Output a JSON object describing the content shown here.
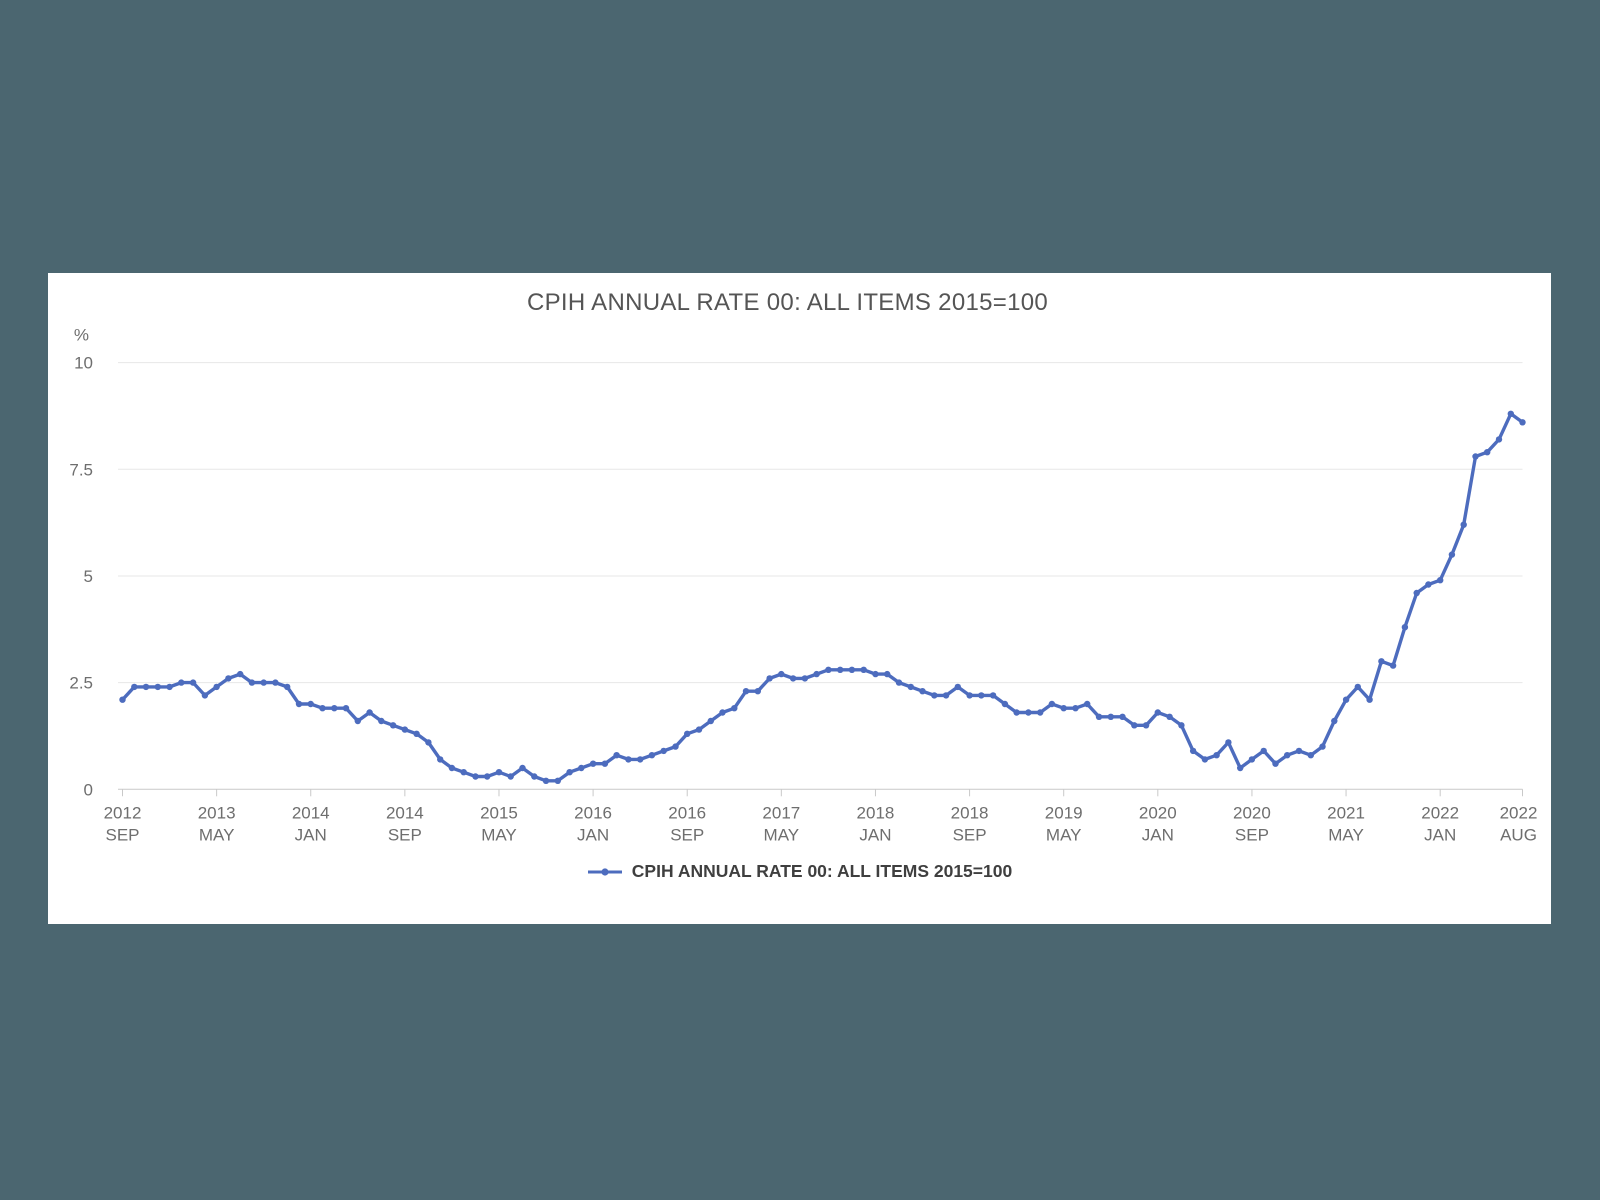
{
  "colors": {
    "page_background": "#4b6670",
    "card_background": "#ffffff",
    "series_line": "#4d6cbe",
    "title_text": "#555555",
    "axis_text": "#6e6e6e",
    "gridline": "#e7e7e7",
    "axis_line": "#c9c9c9",
    "legend_text": "#3f3f3f"
  },
  "chart_data": {
    "type": "line",
    "title": "CPIH ANNUAL RATE 00: ALL ITEMS 2015=100",
    "unit_label": "%",
    "ylim": [
      0,
      10
    ],
    "y_ticks": [
      {
        "value": 0,
        "label": "0"
      },
      {
        "value": 2.5,
        "label": "2.5"
      },
      {
        "value": 5,
        "label": "5"
      },
      {
        "value": 7.5,
        "label": "7.5"
      },
      {
        "value": 10,
        "label": "10"
      }
    ],
    "grid": "horizontal-only",
    "legend_position": "bottom-center",
    "x_ticks": [
      {
        "i": 0,
        "year": "2012",
        "month": "SEP"
      },
      {
        "i": 8,
        "year": "2013",
        "month": "MAY"
      },
      {
        "i": 16,
        "year": "2014",
        "month": "JAN"
      },
      {
        "i": 24,
        "year": "2014",
        "month": "SEP"
      },
      {
        "i": 32,
        "year": "2015",
        "month": "MAY"
      },
      {
        "i": 40,
        "year": "2016",
        "month": "JAN"
      },
      {
        "i": 48,
        "year": "2016",
        "month": "SEP"
      },
      {
        "i": 56,
        "year": "2017",
        "month": "MAY"
      },
      {
        "i": 64,
        "year": "2018",
        "month": "JAN"
      },
      {
        "i": 72,
        "year": "2018",
        "month": "SEP"
      },
      {
        "i": 80,
        "year": "2019",
        "month": "MAY"
      },
      {
        "i": 88,
        "year": "2020",
        "month": "JAN"
      },
      {
        "i": 96,
        "year": "2020",
        "month": "SEP"
      },
      {
        "i": 104,
        "year": "2021",
        "month": "MAY"
      },
      {
        "i": 112,
        "year": "2022",
        "month": "JAN"
      },
      {
        "i": 119,
        "year": "2022",
        "month": "AUG"
      }
    ],
    "x_start": "2012 SEP",
    "x_end": "2022 AUG",
    "x_interval": "monthly",
    "series": [
      {
        "name": "CPIH ANNUAL RATE 00: ALL ITEMS 2015=100",
        "color": "#4d6cbe",
        "marker": "circle",
        "values": [
          2.1,
          2.4,
          2.4,
          2.4,
          2.4,
          2.5,
          2.5,
          2.2,
          2.4,
          2.6,
          2.7,
          2.5,
          2.5,
          2.5,
          2.4,
          2.0,
          2.0,
          1.9,
          1.9,
          1.9,
          1.6,
          1.8,
          1.6,
          1.5,
          1.4,
          1.3,
          1.1,
          0.7,
          0.5,
          0.4,
          0.3,
          0.3,
          0.4,
          0.3,
          0.5,
          0.3,
          0.2,
          0.2,
          0.4,
          0.5,
          0.6,
          0.6,
          0.8,
          0.7,
          0.7,
          0.8,
          0.9,
          1.0,
          1.3,
          1.4,
          1.6,
          1.8,
          1.9,
          2.3,
          2.3,
          2.6,
          2.7,
          2.6,
          2.6,
          2.7,
          2.8,
          2.8,
          2.8,
          2.8,
          2.7,
          2.7,
          2.5,
          2.4,
          2.3,
          2.2,
          2.2,
          2.4,
          2.2,
          2.2,
          2.2,
          2.0,
          1.8,
          1.8,
          1.8,
          2.0,
          1.9,
          1.9,
          2.0,
          1.7,
          1.7,
          1.7,
          1.5,
          1.5,
          1.8,
          1.7,
          1.5,
          0.9,
          0.7,
          0.8,
          1.1,
          0.5,
          0.7,
          0.9,
          0.6,
          0.8,
          0.9,
          0.8,
          1.0,
          1.6,
          2.1,
          2.4,
          2.1,
          3.0,
          2.9,
          3.8,
          4.6,
          4.8,
          4.9,
          5.5,
          6.2,
          7.8,
          7.9,
          8.2,
          8.8,
          8.6
        ]
      }
    ]
  }
}
